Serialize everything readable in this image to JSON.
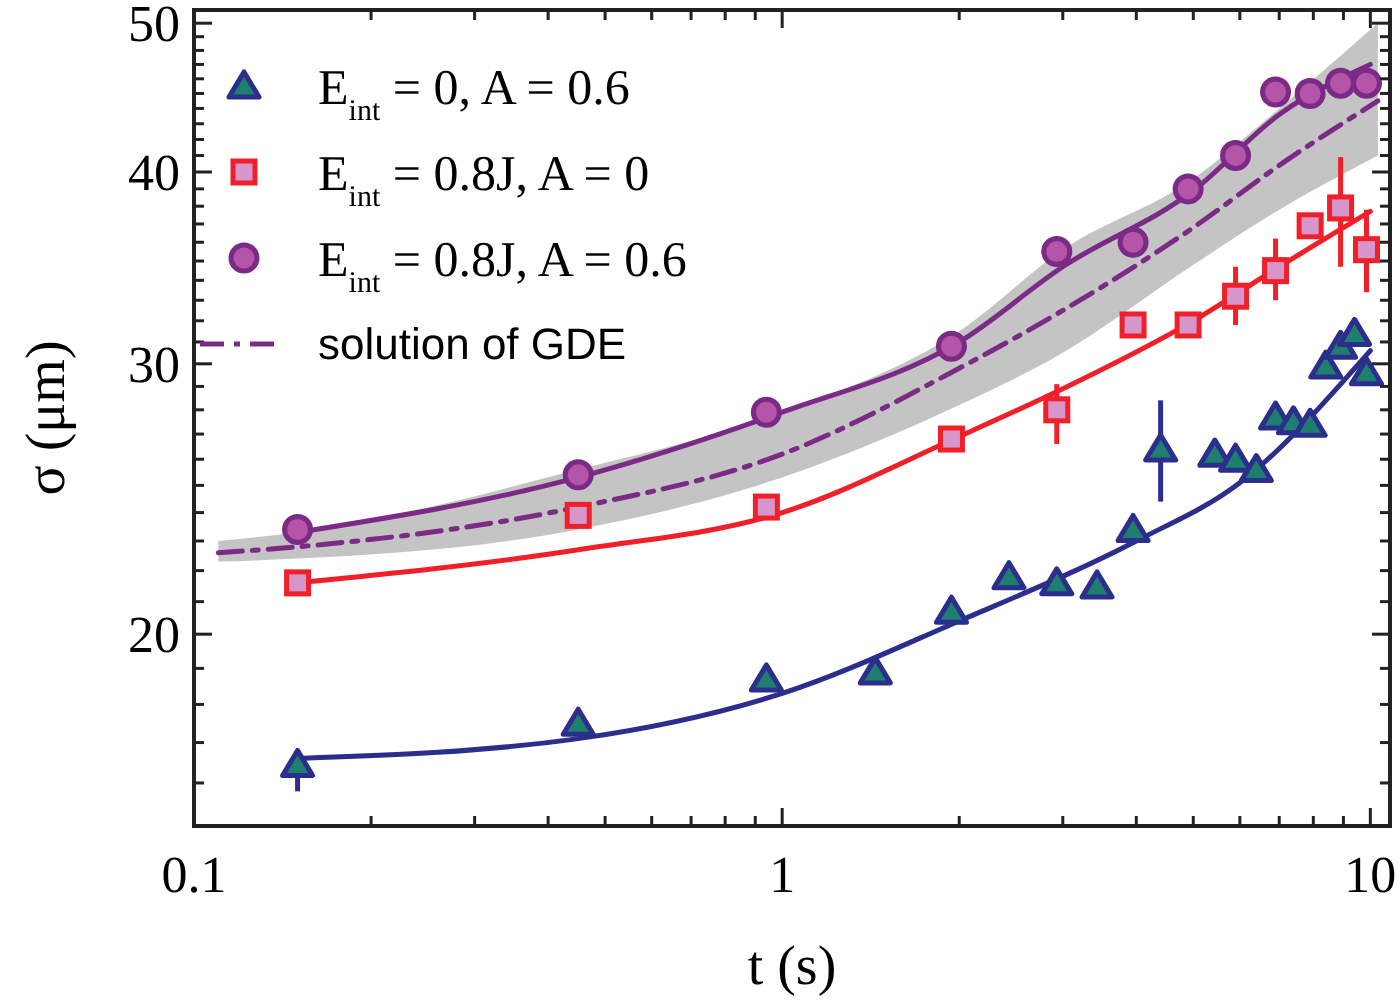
{
  "chart_data": {
    "type": "scatter",
    "xlabel": "t (s)",
    "ylabel": "σ (μm)",
    "log": "xy",
    "xlim": [
      0.1,
      10.8
    ],
    "ylim": [
      15,
      51
    ],
    "xticks": [
      0.1,
      {
        "value": 0.2,
        "label": null
      },
      {
        "value": 0.3,
        "label": null
      },
      {
        "value": 0.4,
        "label": null
      },
      {
        "value": 0.5,
        "label": null
      },
      {
        "value": 0.6,
        "label": null
      },
      {
        "value": 0.7,
        "label": null
      },
      {
        "value": 0.8,
        "label": null
      },
      {
        "value": 0.9,
        "label": null
      },
      1,
      {
        "value": 2,
        "label": null
      },
      {
        "value": 3,
        "label": null
      },
      {
        "value": 4,
        "label": null
      },
      {
        "value": 5,
        "label": null
      },
      {
        "value": 6,
        "label": null
      },
      {
        "value": 7,
        "label": null
      },
      {
        "value": 8,
        "label": null
      },
      {
        "value": 9,
        "label": null
      },
      10
    ],
    "yticks": [
      {
        "value": 16,
        "label": null
      },
      {
        "value": 17,
        "label": null
      },
      {
        "value": 18,
        "label": null
      },
      {
        "value": 19,
        "label": null
      },
      20,
      {
        "value": 21,
        "label": null
      },
      {
        "value": 22,
        "label": null
      },
      {
        "value": 23,
        "label": null
      },
      {
        "value": 24,
        "label": null
      },
      {
        "value": 25,
        "label": null
      },
      {
        "value": 26,
        "label": null
      },
      {
        "value": 27,
        "label": null
      },
      {
        "value": 28,
        "label": null
      },
      {
        "value": 29,
        "label": null
      },
      30,
      {
        "value": 31,
        "label": null
      },
      {
        "value": 32,
        "label": null
      },
      {
        "value": 33,
        "label": null
      },
      {
        "value": 34,
        "label": null
      },
      {
        "value": 35,
        "label": null
      },
      {
        "value": 36,
        "label": null
      },
      {
        "value": 37,
        "label": null
      },
      {
        "value": 38,
        "label": null
      },
      {
        "value": 39,
        "label": null
      },
      40,
      {
        "value": 41,
        "label": null
      },
      {
        "value": 42,
        "label": null
      },
      {
        "value": 43,
        "label": null
      },
      {
        "value": 44,
        "label": null
      },
      {
        "value": 45,
        "label": null
      },
      {
        "value": 46,
        "label": null
      },
      {
        "value": 47,
        "label": null
      },
      {
        "value": 48,
        "label": null
      },
      {
        "value": 49,
        "label": null
      },
      50
    ],
    "tick_labels": "xy",
    "grid": false,
    "legend": "top left",
    "series": [
      {
        "name": "solution of GDE",
        "type": "line",
        "line_style": "dashdot",
        "color": "#7b2a86",
        "x": [
          0.11,
          0.15,
          0.45,
          1,
          2,
          3,
          5,
          7,
          10.3
        ],
        "values": [
          22.6,
          22.8,
          24.2,
          26.2,
          29.8,
          32.5,
          36.8,
          40.4,
          44.5
        ],
        "lower": [
          22.3,
          22.4,
          23.4,
          25.3,
          28.2,
          30.5,
          34.8,
          37.8,
          41.0
        ],
        "upper": [
          23.0,
          23.3,
          25.6,
          27.9,
          31.5,
          35.6,
          39.6,
          44.0,
          50.0
        ]
      },
      {
        "type": "line",
        "color": "#2b2e8c",
        "x": [
          0.15,
          0.45,
          1,
          2,
          4,
          6,
          10
        ],
        "values": [
          16.6,
          17.1,
          18.3,
          20.4,
          23.0,
          25.1,
          30.6
        ]
      },
      {
        "type": "line",
        "color": "#f0202a",
        "x": [
          0.15,
          0.45,
          1,
          2,
          3,
          5,
          7,
          10
        ],
        "values": [
          21.6,
          22.7,
          24.0,
          26.9,
          28.9,
          32.0,
          34.7,
          37.7
        ]
      },
      {
        "type": "line",
        "color": "#7b2a86",
        "x": [
          0.15,
          0.45,
          1,
          2,
          3,
          5,
          7,
          10
        ],
        "values": [
          23.3,
          25.3,
          27.9,
          31.0,
          34.7,
          38.9,
          43.6,
          47.0
        ]
      },
      {
        "name": "E$_{int}$ = 0, A = 0.6",
        "marker": "triangle",
        "color": "#2b2e8c",
        "x": [
          0.15,
          0.45,
          0.94,
          1.44,
          1.94,
          2.43,
          2.93,
          3.43,
          3.95,
          4.4,
          5.44,
          5.9,
          6.4,
          6.9,
          7.4,
          7.9,
          8.4,
          8.9,
          9.4,
          9.85
        ],
        "values": [
          16.45,
          17.5,
          18.7,
          18.9,
          20.7,
          21.8,
          21.6,
          21.5,
          23.4,
          26.4,
          26.2,
          26.0,
          25.6,
          27.7,
          27.5,
          27.4,
          29.9,
          30.8,
          31.4,
          29.6
        ],
        "errors": [
          [
            15.8,
            16.8
          ],
          null,
          null,
          null,
          null,
          null,
          null,
          null,
          null,
          [
            24.4,
            28.4
          ],
          null,
          null,
          null,
          null,
          null,
          null,
          null,
          null,
          null,
          null
        ]
      },
      {
        "name": "E$_{int}$ = 0.8J, A = 0",
        "marker": "square",
        "color": "#f0202a",
        "x": [
          0.15,
          0.45,
          0.94,
          1.94,
          2.93,
          3.95,
          4.9,
          5.9,
          6.9,
          7.9,
          8.9,
          9.85
        ],
        "values": [
          21.6,
          23.9,
          24.2,
          26.8,
          28.0,
          31.8,
          31.8,
          33.2,
          34.5,
          36.9,
          37.9,
          35.6
        ],
        "errors": [
          null,
          null,
          null,
          null,
          [
            26.6,
            29.1
          ],
          null,
          null,
          [
            31.8,
            34.7
          ],
          [
            33.0,
            36.2
          ],
          null,
          [
            34.7,
            40.9
          ],
          [
            33.4,
            37.8
          ]
        ]
      },
      {
        "name": "E$_{int}$ = 0.8J, A = 0.6",
        "marker": "circle",
        "color": "#7b2a86",
        "x": [
          0.15,
          0.45,
          0.94,
          1.94,
          2.93,
          3.95,
          4.9,
          5.9,
          6.9,
          7.9,
          8.9,
          9.85
        ],
        "values": [
          23.4,
          25.4,
          27.9,
          30.8,
          35.5,
          36.0,
          39.0,
          41.0,
          45.1,
          45.0,
          45.7,
          45.7
        ]
      }
    ]
  }
}
